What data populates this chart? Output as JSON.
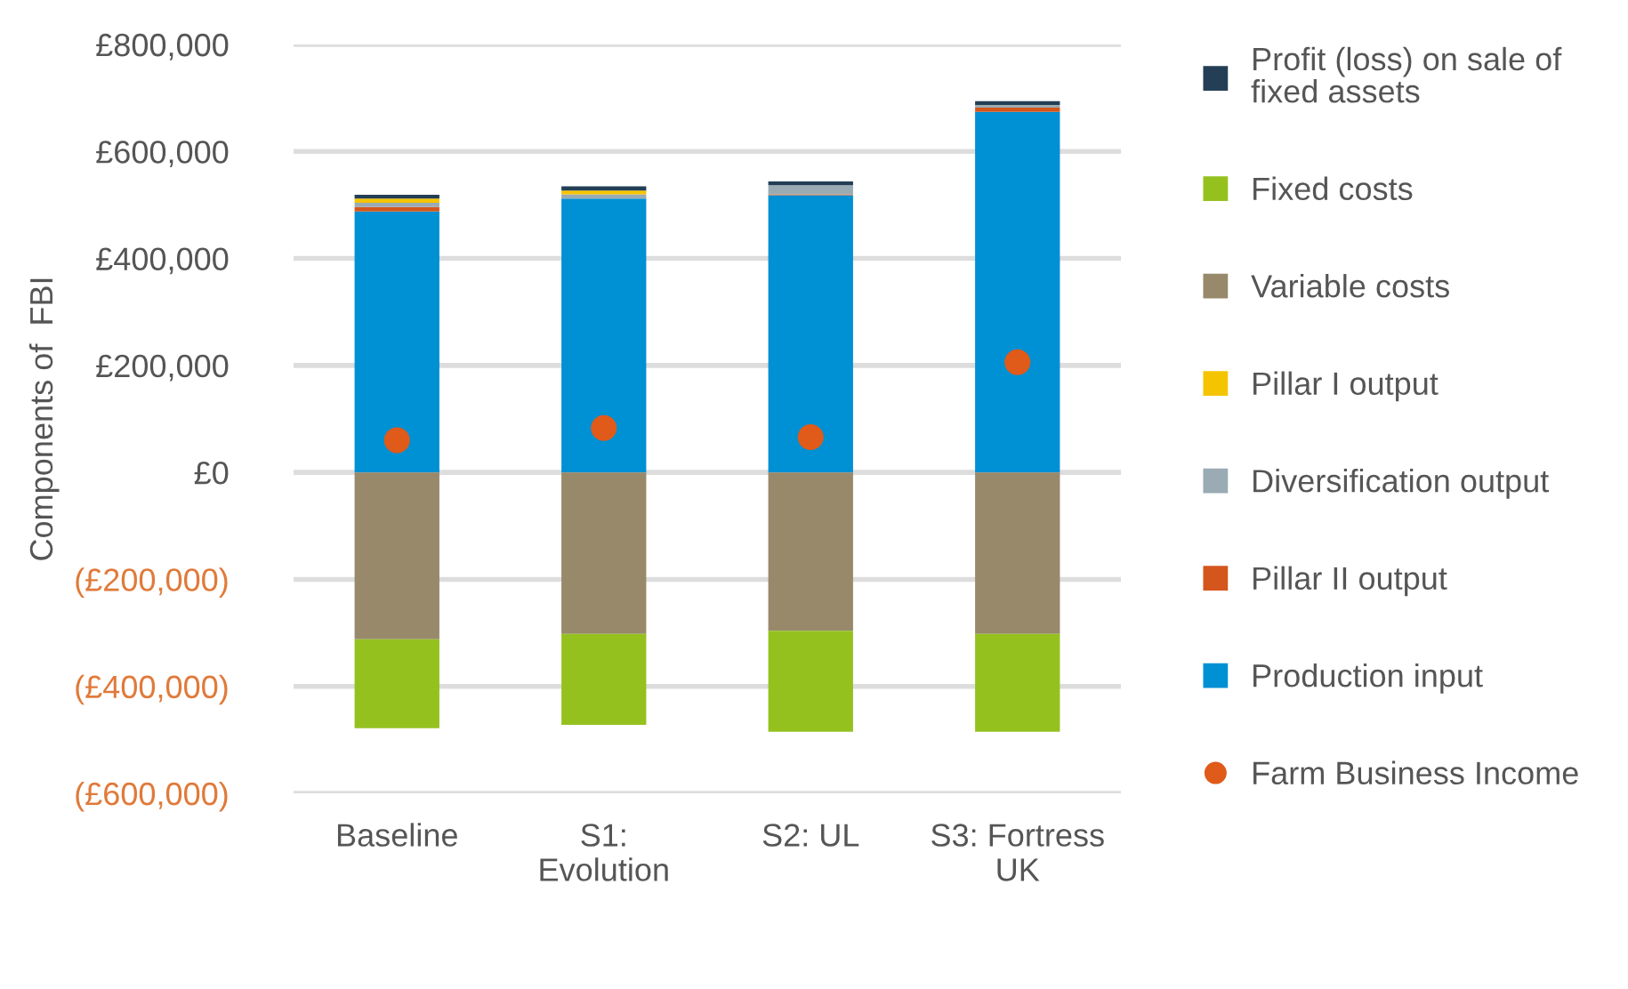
{
  "chart_data": {
    "type": "bar",
    "stacked": true,
    "ylabel": "Components of  FBI",
    "categories": [
      "Baseline",
      "S1:\nEvolution",
      "S2: UL",
      "S3: Fortress\nUK"
    ],
    "series": [
      {
        "name": "Production input",
        "color": "#0090d4",
        "values": [
          488000,
          512000,
          518000,
          674000
        ]
      },
      {
        "name": "Pillar II output",
        "color": "#d4561c",
        "values": [
          8000,
          0,
          2000,
          8000
        ]
      },
      {
        "name": "Diversification output",
        "color": "#9aabb4",
        "values": [
          8000,
          8000,
          17000,
          5000
        ]
      },
      {
        "name": "Pillar I output",
        "color": "#f5c400",
        "values": [
          8000,
          7000,
          0,
          0
        ]
      },
      {
        "name": "Variable costs",
        "color": "#98896b",
        "values": [
          -312000,
          -302000,
          -296000,
          -302000
        ]
      },
      {
        "name": "Fixed costs",
        "color": "#95c11f",
        "values": [
          -166000,
          -170000,
          -189000,
          -183000
        ]
      },
      {
        "name": "Profit (loss) on sale of\nfixed assets",
        "color": "#243f55",
        "values": [
          7000,
          8000,
          7000,
          7000
        ]
      },
      {
        "name": "Farm Business Income",
        "type": "scatter",
        "color": "#e05a1a",
        "marker": "circle",
        "values": [
          60000,
          83000,
          66000,
          206000
        ]
      }
    ],
    "ylim": [
      -600000,
      800000
    ],
    "yticks": [
      {
        "value": -600000,
        "label": "(£600,000)"
      },
      {
        "value": -400000,
        "label": "(£400,000)"
      },
      {
        "value": -200000,
        "label": "(£200,000)"
      },
      {
        "value": 0,
        "label": "£0"
      },
      {
        "value": 200000,
        "label": "£200,000"
      },
      {
        "value": 400000,
        "label": "£400,000"
      },
      {
        "value": 600000,
        "label": "£600,000"
      },
      {
        "value": 800000,
        "label": "£800,000"
      }
    ],
    "grid": "y",
    "legend": "right"
  }
}
